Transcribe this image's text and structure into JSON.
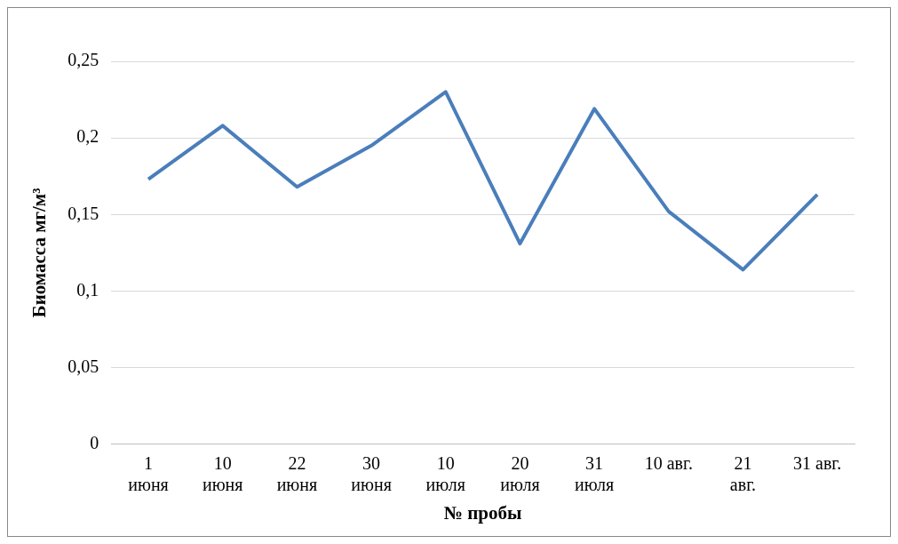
{
  "chart_data": {
    "type": "line",
    "xlabel": "№ пробы",
    "ylabel": "Биомасса мг/м³",
    "categories": [
      "1\nиюня",
      "10\nиюня",
      "22\nиюня",
      "30\nиюня",
      "10\nиюля",
      "20\nиюля",
      "31\nиюля",
      "10 авг.",
      "21\nавг.",
      "31 авг."
    ],
    "series": [
      {
        "color": "#4a7ebb",
        "values": [
          0.173,
          0.208,
          0.168,
          0.195,
          0.23,
          0.131,
          0.219,
          0.152,
          0.114,
          0.163
        ]
      }
    ],
    "ylim": [
      0,
      0.25
    ],
    "yticks": [
      {
        "value": 0,
        "label": "0"
      },
      {
        "value": 0.05,
        "label": "0,05"
      },
      {
        "value": 0.1,
        "label": "0,1"
      },
      {
        "value": 0.15,
        "label": "0,15"
      },
      {
        "value": 0.2,
        "label": "0,2"
      },
      {
        "value": 0.25,
        "label": "0,25"
      }
    ],
    "grid": "y",
    "legend": false,
    "marker": "none",
    "line_style": "solid"
  }
}
